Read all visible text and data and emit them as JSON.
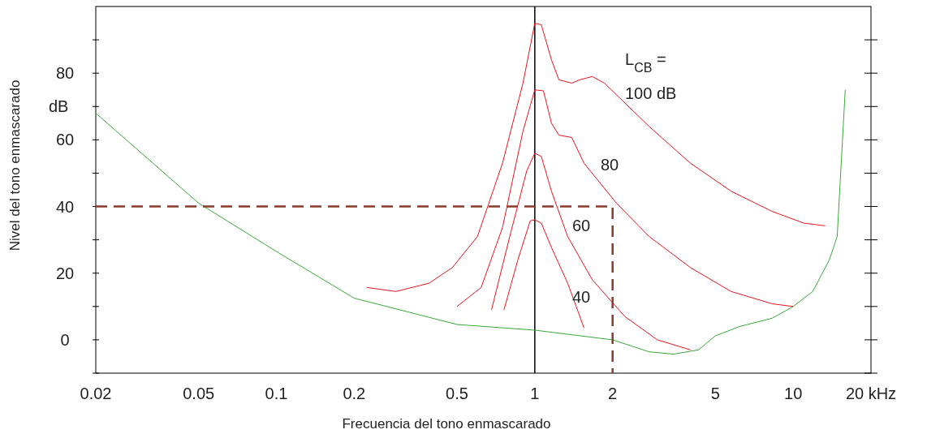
{
  "chart_data": {
    "type": "line",
    "xlabel": "Frecuencia del tono enmascarado",
    "ylabel": "Nivel del tono enmascarado",
    "log": "x",
    "grid": false,
    "marker": "none",
    "xlim": [
      0.02,
      20
    ],
    "xticks": [
      0.02,
      0.05,
      0.1,
      0.2,
      0.5,
      1,
      2,
      5,
      10,
      {
        "value": 20,
        "label": "20 kHz"
      }
    ],
    "ylim": [
      -10,
      100
    ],
    "yticks": [
      {
        "value": -10,
        "label": null
      },
      0,
      {
        "value": 10,
        "label": null
      },
      20,
      {
        "value": 30,
        "label": null
      },
      40,
      {
        "value": 50,
        "label": null
      },
      60,
      {
        "value": 70,
        "label": null
      },
      80,
      {
        "value": 90,
        "label": null
      }
    ],
    "ref_lines": [
      {
        "axis": "x",
        "value": 1,
        "color": "#000000"
      }
    ],
    "series": [
      {
        "color": "#3aa83a",
        "line_style": "solid",
        "x": [
          0.02,
          0.05,
          0.1,
          0.2,
          0.5,
          1,
          2,
          2.77,
          3.45,
          4.3,
          5,
          6.2,
          8.3,
          10,
          11.9,
          13.8,
          14.8,
          15.9
        ],
        "values": [
          68,
          41,
          26.5,
          12.5,
          4.6,
          2.9,
          0,
          -3.6,
          -4.3,
          -3,
          1.2,
          4,
          6.5,
          10,
          14.5,
          24,
          31,
          75
        ]
      },
      {
        "color": "#e8141e",
        "line_style": "solid",
        "x": [
          0.224,
          0.29,
          0.39,
          0.48,
          0.6,
          0.75,
          0.9,
          1,
          1.06,
          1.16,
          1.24,
          1.39,
          1.49,
          1.67,
          1.86,
          2.77,
          4,
          5.75,
          8.3,
          11,
          13.3
        ],
        "values": [
          15.7,
          14.5,
          17,
          21.7,
          31,
          53,
          77,
          95,
          94.5,
          84,
          78,
          77,
          78,
          79,
          77,
          64,
          53,
          44.6,
          38.5,
          35,
          34.2
        ]
      },
      {
        "color": "#e8141e",
        "line_style": "solid",
        "x": [
          0.5,
          0.62,
          0.75,
          0.9,
          1,
          1.08,
          1.16,
          1.24,
          1.39,
          1.55,
          2.07,
          2.77,
          4,
          5.75,
          8.3,
          10
        ],
        "values": [
          10,
          15.7,
          33.7,
          62.6,
          75,
          74.7,
          65,
          61.4,
          60.7,
          53,
          41,
          31,
          21.7,
          14.5,
          10.8,
          10
        ]
      },
      {
        "color": "#e8141e",
        "line_style": "solid",
        "x": [
          0.68,
          0.8,
          0.93,
          1,
          1.06,
          1.16,
          1.34,
          1.67,
          2.23,
          2.98,
          4
        ],
        "values": [
          9,
          31,
          50.6,
          56,
          55,
          44.6,
          31,
          18,
          7,
          0,
          -3
        ]
      },
      {
        "color": "#e8141e",
        "line_style": "solid",
        "x": [
          0.76,
          0.86,
          0.96,
          1,
          1.06,
          1.16,
          1.34,
          1.55
        ],
        "values": [
          9,
          24,
          35.7,
          36,
          35,
          27.7,
          17,
          3.6
        ]
      },
      {
        "color": "#8b3a2a",
        "line_style": "dashed",
        "x": [
          0.02,
          2,
          2
        ],
        "values": [
          40,
          40,
          -10
        ]
      }
    ],
    "annotations": [
      "dB",
      "L$_{CB}$ =",
      "100 dB",
      "80",
      "60",
      "40"
    ]
  }
}
